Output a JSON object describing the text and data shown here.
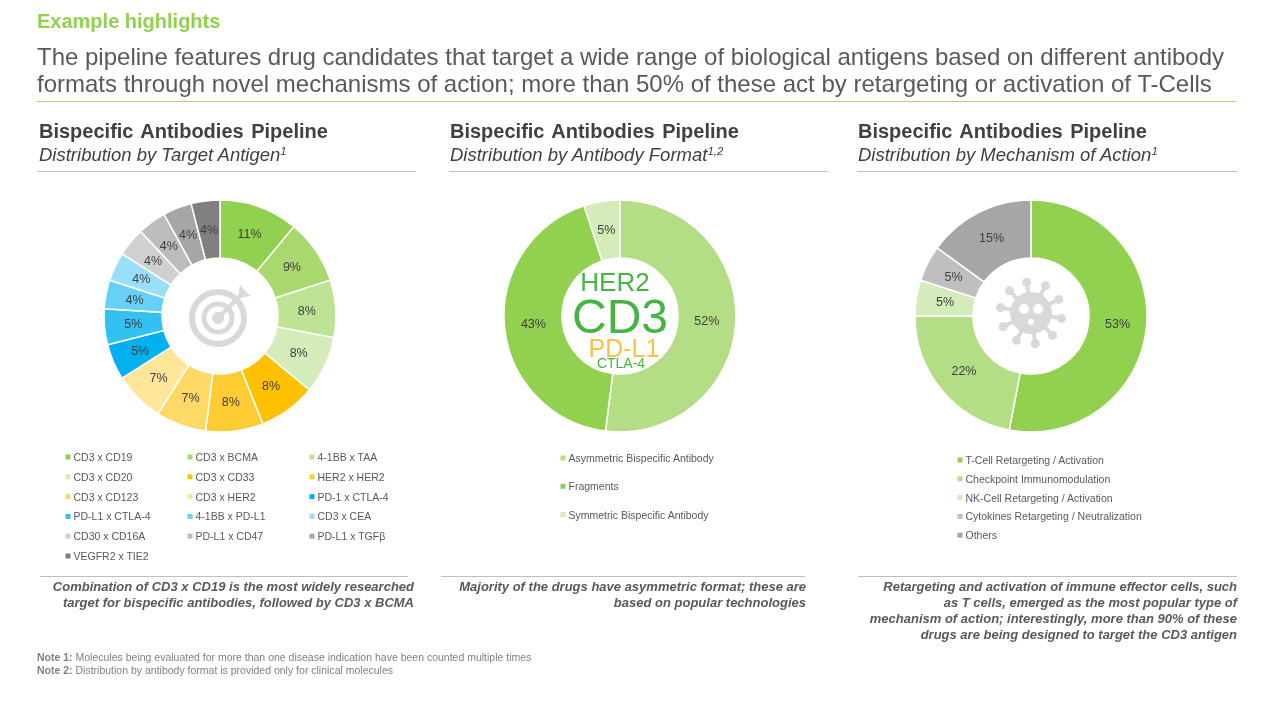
{
  "chart_data": [
    {
      "type": "other",
      "title": "Example highlights",
      "subtitle": "The pipeline features drug candidates that target a wide range of biological antigens based on different antibody formats through novel mechanisms of action; more than 50% of these act by retargeting or activation of T-Cells"
    },
    {
      "type": "donut",
      "title": "Bispecific Antibodies Pipeline",
      "subtitle": "Distribution by Target Antigen$^{1}$",
      "categories": [
        "CD3 x CD19",
        "CD3 x BCMA",
        "4-1BB x TAA",
        "CD3 x CD20",
        "CD3 x CD33",
        "HER2 x HER2",
        "CD3 x CD123",
        "CD3 x HER2",
        "PD-1 x CTLA-4",
        "PD-L1 x CTLA-4",
        "4-1BB x PD-L1",
        "CD3 x CEA",
        "CD30 x CD16A",
        "PD-L1 x CD47",
        "PD-L1 x TGFβ",
        "VEGFR2 x TIE2"
      ],
      "values": [
        11,
        9,
        8,
        8,
        8,
        8,
        7,
        7,
        5,
        5,
        4,
        4,
        4,
        4,
        4,
        4
      ],
      "value_labels": [
        "11%",
        "9%",
        "8%",
        "8%",
        "8%",
        "8%",
        "7%",
        "7%",
        "5%",
        "5%",
        "4%",
        "4%",
        "4%",
        "4%",
        "4%",
        "4%"
      ],
      "colors": [
        "#92d050",
        "#a9d86e",
        "#bee395",
        "#d3ecb9",
        "#ffc000",
        "#ffcd33",
        "#ffd966",
        "#ffe699",
        "#00b0f0",
        "#33c0f3",
        "#66d0f6",
        "#99dff9",
        "#d0d0d0",
        "#bcbcbc",
        "#a6a6a6",
        "#808080"
      ],
      "legend": "bottom",
      "annotations": [
        "Combination of CD3 x CD19 is the most widely researched target for bispecific antibodies, followed by CD3 x BCMA"
      ]
    },
    {
      "type": "donut",
      "title": "Bispecific Antibodies Pipeline",
      "subtitle": "Distribution by Antibody Format$^{1,2}$",
      "categories": [
        "Asymmetric Bispecific Antibody",
        "Fragments",
        "Symmetric Bispecific Antibody"
      ],
      "values": [
        52,
        43,
        5
      ],
      "value_labels": [
        "52%",
        "43%",
        "5%"
      ],
      "colors": [
        "#b3de86",
        "#92d050",
        "#d3ecb9"
      ],
      "legend": "bottom",
      "annotations": [
        "HER2",
        "CD3",
        "PD-L1",
        "CTLA-4",
        "Majority of the drugs have asymmetric format; these are based on popular technologies"
      ]
    },
    {
      "type": "donut",
      "title": "Bispecific Antibodies Pipeline",
      "subtitle": "Distribution by Mechanism of Action$^{1}$",
      "categories": [
        "T-Cell Retargeting / Activation",
        "Checkpoint Immunomodulation",
        "NK-Cell Retargeting / Activation",
        "Cytokines Retargeting / Neutralization",
        "Others"
      ],
      "values": [
        53,
        22,
        5,
        5,
        15
      ],
      "value_labels": [
        "53%",
        "22%",
        "5%",
        "5%",
        "15%"
      ],
      "colors": [
        "#92d050",
        "#b3de86",
        "#d3ecb9",
        "#bfbfbf",
        "#a6a6a6"
      ],
      "legend": "bottom",
      "annotations": [
        "Retargeting and activation of immune effector cells, such as T cells, emerged as the most popular type of mechanism of action; interestingly, more than 90% of these drugs are being designed to target the CD3 antigen"
      ]
    },
    {
      "type": "other",
      "annotations": [
        "Note 1: Molecules being evaluated for more than one disease indication have been counted multiple times",
        "Note 2: Distribution by antibody format is provided only for clinical molecules"
      ]
    }
  ]
}
